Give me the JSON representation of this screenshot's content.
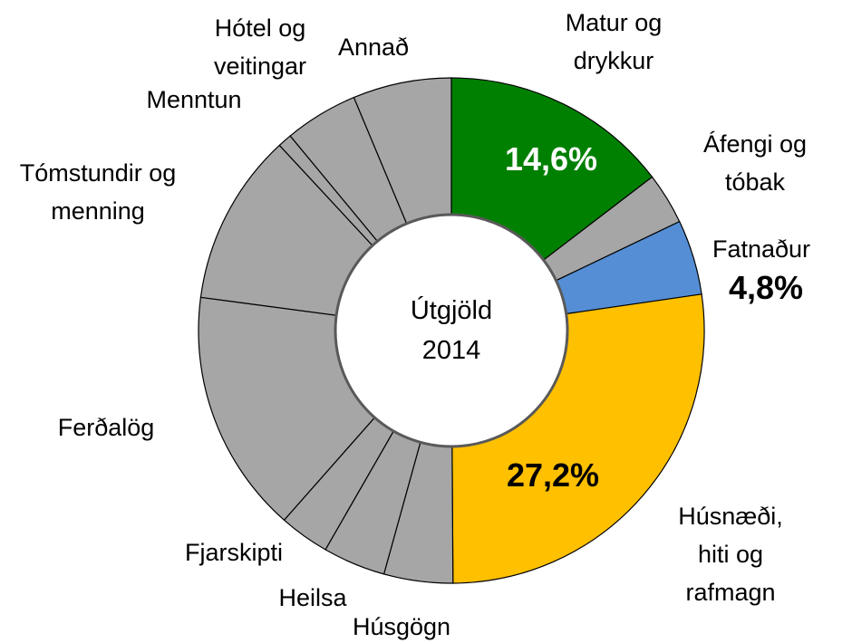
{
  "chart_data": {
    "type": "donut",
    "center_label": "Útgjöld 2014",
    "categories": [
      "Matur og drykkur",
      "Áfengi og tóbak",
      "Fatnaður",
      "Húsnæði, hiti og rafmagn",
      "Húsgögn",
      "Heilsa",
      "Fjarskipti",
      "Ferðalög",
      "Tómstundir og menning",
      "Menntun",
      "Hótel og veitingar",
      "Annað"
    ],
    "values": [
      14.6,
      3.3,
      4.8,
      27.2,
      4.4,
      4.0,
      3.2,
      15.6,
      11.0,
      0.9,
      4.7,
      6.3
    ],
    "value_labels": [
      "14,6%",
      null,
      "4,8%",
      "27,2%",
      null,
      null,
      null,
      null,
      null,
      null,
      null,
      null
    ],
    "colors": [
      "#008000",
      "#a6a6a6",
      "#558ed5",
      "#ffc000",
      "#a6a6a6",
      "#a6a6a6",
      "#a6a6a6",
      "#a6a6a6",
      "#a6a6a6",
      "#a6a6a6",
      "#a6a6a6",
      "#a6a6a6"
    ]
  }
}
